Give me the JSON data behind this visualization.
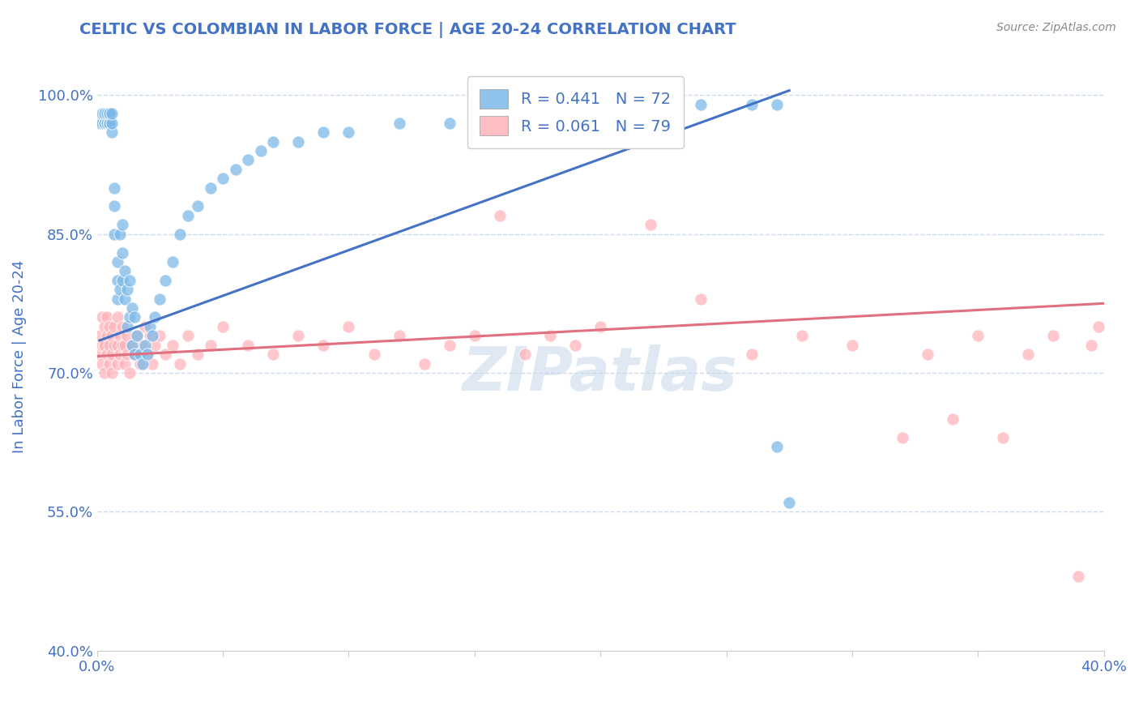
{
  "title": "CELTIC VS COLOMBIAN IN LABOR FORCE | AGE 20-24 CORRELATION CHART",
  "source_text": "Source: ZipAtlas.com",
  "ylabel": "In Labor Force | Age 20-24",
  "xlim": [
    0.0,
    0.4
  ],
  "ylim": [
    0.4,
    1.035
  ],
  "yticks": [
    0.4,
    0.55,
    0.7,
    0.85,
    1.0
  ],
  "ytick_labels": [
    "40.0%",
    "55.0%",
    "70.0%",
    "85.0%",
    "100.0%"
  ],
  "xticks": [
    0.0,
    0.05,
    0.1,
    0.15,
    0.2,
    0.25,
    0.3,
    0.35,
    0.4
  ],
  "xtick_labels": [
    "0.0%",
    "",
    "",
    "",
    "",
    "",
    "",
    "",
    "40.0%"
  ],
  "celtics_color": "#7cb9e8",
  "colombians_color": "#ffb3ba",
  "celtics_R": 0.441,
  "celtics_N": 72,
  "colombians_R": 0.061,
  "colombians_N": 79,
  "celtics_trend_x": [
    0.001,
    0.275
  ],
  "celtics_trend_y": [
    0.735,
    1.005
  ],
  "colombians_trend_x": [
    0.0,
    0.4
  ],
  "colombians_trend_y": [
    0.718,
    0.775
  ],
  "title_color": "#4472c4",
  "axis_color": "#4472c4",
  "tick_color": "#4472c4",
  "grid_color": "#c8d8ea",
  "celtics_x": [
    0.001,
    0.002,
    0.002,
    0.003,
    0.003,
    0.003,
    0.004,
    0.004,
    0.004,
    0.005,
    0.005,
    0.005,
    0.005,
    0.005,
    0.006,
    0.006,
    0.006,
    0.007,
    0.007,
    0.007,
    0.008,
    0.008,
    0.008,
    0.009,
    0.009,
    0.01,
    0.01,
    0.01,
    0.011,
    0.011,
    0.012,
    0.012,
    0.013,
    0.013,
    0.014,
    0.014,
    0.015,
    0.015,
    0.016,
    0.017,
    0.018,
    0.019,
    0.02,
    0.021,
    0.022,
    0.023,
    0.025,
    0.027,
    0.03,
    0.033,
    0.036,
    0.04,
    0.045,
    0.05,
    0.055,
    0.06,
    0.065,
    0.07,
    0.08,
    0.09,
    0.1,
    0.12,
    0.14,
    0.16,
    0.18,
    0.2,
    0.22,
    0.24,
    0.26,
    0.27,
    0.27,
    0.275
  ],
  "celtics_y": [
    0.97,
    0.97,
    0.98,
    0.97,
    0.97,
    0.98,
    0.97,
    0.97,
    0.98,
    0.97,
    0.97,
    0.98,
    0.97,
    0.98,
    0.96,
    0.97,
    0.98,
    0.9,
    0.88,
    0.85,
    0.82,
    0.8,
    0.78,
    0.79,
    0.85,
    0.8,
    0.83,
    0.86,
    0.78,
    0.81,
    0.75,
    0.79,
    0.76,
    0.8,
    0.73,
    0.77,
    0.72,
    0.76,
    0.74,
    0.72,
    0.71,
    0.73,
    0.72,
    0.75,
    0.74,
    0.76,
    0.78,
    0.8,
    0.82,
    0.85,
    0.87,
    0.88,
    0.9,
    0.91,
    0.92,
    0.93,
    0.94,
    0.95,
    0.95,
    0.96,
    0.96,
    0.97,
    0.97,
    0.97,
    0.98,
    0.98,
    0.98,
    0.99,
    0.99,
    0.99,
    0.62,
    0.56
  ],
  "colombians_x": [
    0.001,
    0.001,
    0.002,
    0.002,
    0.002,
    0.003,
    0.003,
    0.003,
    0.004,
    0.004,
    0.004,
    0.005,
    0.005,
    0.005,
    0.006,
    0.006,
    0.006,
    0.007,
    0.007,
    0.008,
    0.008,
    0.008,
    0.009,
    0.009,
    0.01,
    0.01,
    0.011,
    0.011,
    0.012,
    0.012,
    0.013,
    0.014,
    0.015,
    0.016,
    0.017,
    0.018,
    0.019,
    0.02,
    0.021,
    0.022,
    0.023,
    0.025,
    0.027,
    0.03,
    0.033,
    0.036,
    0.04,
    0.045,
    0.05,
    0.06,
    0.07,
    0.08,
    0.09,
    0.1,
    0.11,
    0.12,
    0.13,
    0.14,
    0.15,
    0.16,
    0.17,
    0.18,
    0.19,
    0.2,
    0.22,
    0.24,
    0.26,
    0.28,
    0.3,
    0.32,
    0.33,
    0.34,
    0.35,
    0.36,
    0.37,
    0.38,
    0.39,
    0.395,
    0.398
  ],
  "colombians_y": [
    0.72,
    0.74,
    0.71,
    0.73,
    0.76,
    0.7,
    0.73,
    0.75,
    0.72,
    0.74,
    0.76,
    0.71,
    0.73,
    0.75,
    0.7,
    0.72,
    0.74,
    0.73,
    0.75,
    0.71,
    0.73,
    0.76,
    0.72,
    0.74,
    0.73,
    0.75,
    0.71,
    0.73,
    0.72,
    0.74,
    0.7,
    0.73,
    0.72,
    0.74,
    0.71,
    0.73,
    0.75,
    0.72,
    0.74,
    0.71,
    0.73,
    0.74,
    0.72,
    0.73,
    0.71,
    0.74,
    0.72,
    0.73,
    0.75,
    0.73,
    0.72,
    0.74,
    0.73,
    0.75,
    0.72,
    0.74,
    0.71,
    0.73,
    0.74,
    0.87,
    0.72,
    0.74,
    0.73,
    0.75,
    0.86,
    0.78,
    0.72,
    0.74,
    0.73,
    0.63,
    0.72,
    0.65,
    0.74,
    0.63,
    0.72,
    0.74,
    0.48,
    0.73,
    0.75
  ]
}
